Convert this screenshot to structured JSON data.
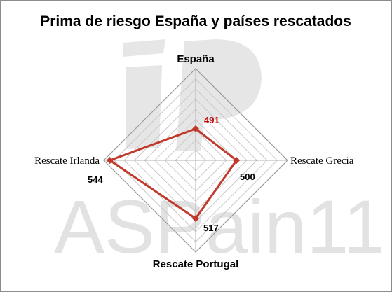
{
  "chart_data": {
    "type": "radar",
    "title": "Prima de riesgo España y países rescatados",
    "categories": [
      "España",
      "Rescate Grecia",
      "Rescate Portugal",
      "Rescate Irlanda"
    ],
    "series": [
      {
        "values": [
          491,
          500,
          517,
          544
        ],
        "color": "#c0392b"
      }
    ],
    "data_labels": [
      "491",
      "500",
      "517",
      "544"
    ],
    "data_label_colors": [
      "#c00000",
      "#000000",
      "#000000",
      "#000000"
    ],
    "rlim": [
      460,
      550
    ],
    "rings": 9,
    "grid": true,
    "legend": "none"
  },
  "watermark": {
    "text": "ASPain11",
    "color": "#e2e2e2"
  },
  "colors": {
    "grid": "#c8c8c8",
    "series": "#c0392b",
    "marker": "#c0392b"
  }
}
